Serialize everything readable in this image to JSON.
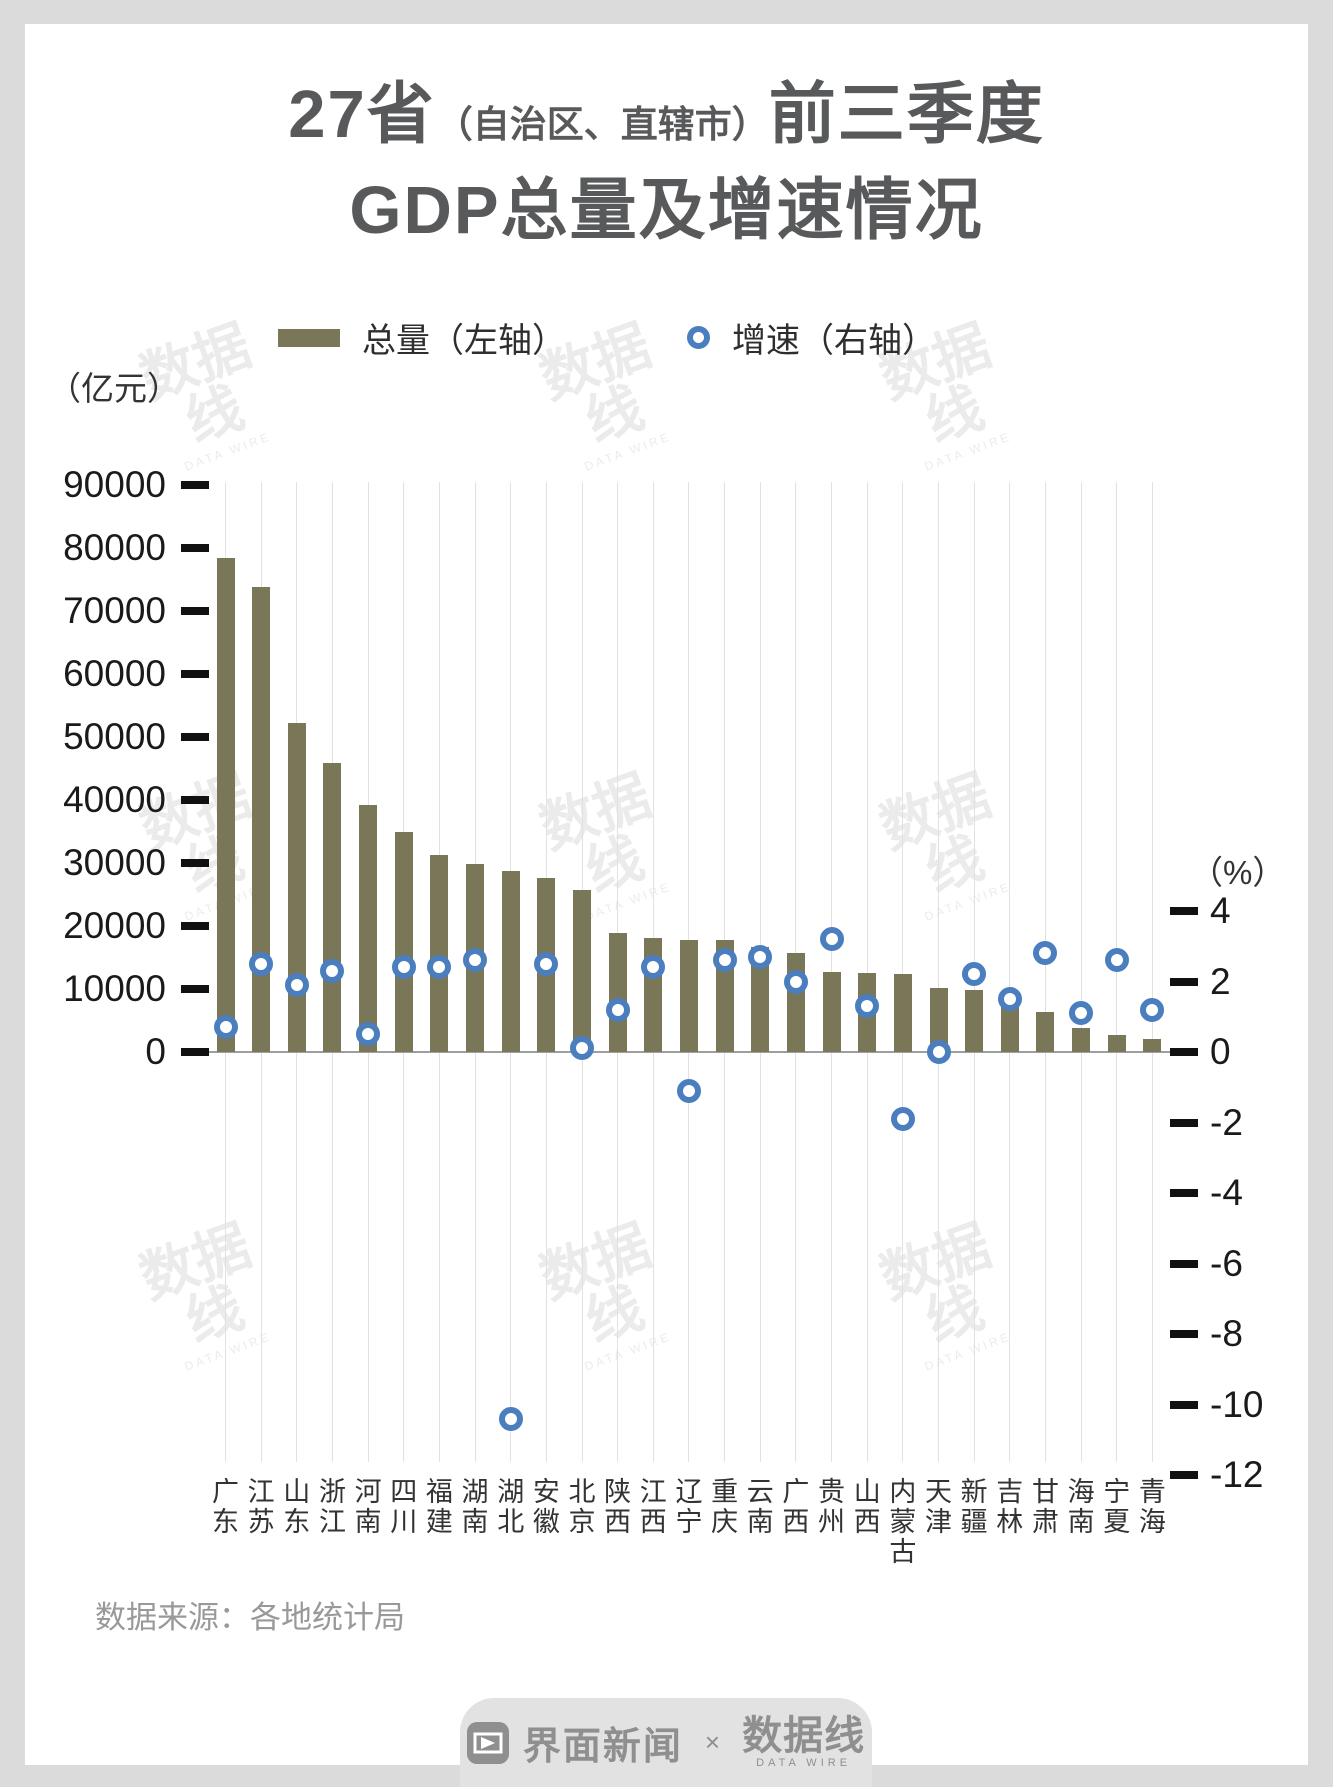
{
  "title": {
    "part1": "27省",
    "part2": "（自治区、直辖市）",
    "part3": "前三季度",
    "line2": "GDP总量及增速情况"
  },
  "legend": {
    "bar_label": "总量（左轴）",
    "circle_label": "增速（右轴）"
  },
  "chart_data": {
    "type": "bar+scatter",
    "title": "27省（自治区、直辖市）前三季度GDP总量及增速情况",
    "categories": [
      "广东",
      "江苏",
      "山东",
      "浙江",
      "河南",
      "四川",
      "福建",
      "湖南",
      "湖北",
      "安徽",
      "北京",
      "陕西",
      "江西",
      "辽宁",
      "重庆",
      "云南",
      "广西",
      "贵州",
      "山西",
      "内蒙古",
      "天津",
      "新疆",
      "吉林",
      "甘肃",
      "海南",
      "宁夏",
      "青海"
    ],
    "series": [
      {
        "name": "总量（左轴）",
        "type": "bar",
        "axis": "left",
        "unit": "亿元",
        "color": "#7A7658",
        "values": [
          78400,
          73808,
          52186,
          45826,
          39231,
          34906,
          31331,
          29781,
          28780,
          27668,
          25759,
          18880,
          18087,
          17708,
          17707,
          16630,
          15767,
          12650,
          12500,
          12319,
          10095,
          9778,
          8797,
          6331,
          3813,
          2744,
          2133
        ]
      },
      {
        "name": "增速（右轴）",
        "type": "scatter",
        "axis": "right",
        "unit": "%",
        "color": "#4A7EBF",
        "values": [
          0.7,
          2.5,
          1.9,
          2.3,
          0.5,
          2.4,
          2.4,
          2.6,
          -10.4,
          2.5,
          0.1,
          1.2,
          2.4,
          -1.1,
          2.6,
          2.7,
          2.0,
          3.2,
          1.3,
          -1.9,
          0.0,
          2.2,
          1.5,
          2.8,
          1.1,
          2.6,
          1.2
        ]
      }
    ],
    "left_axis": {
      "unit_label": "（亿元）",
      "min": 0,
      "max": 90000,
      "tick_step": 10000,
      "tick_labels": [
        "90000",
        "80000",
        "70000",
        "60000",
        "50000",
        "40000",
        "30000",
        "20000",
        "10000",
        "0"
      ]
    },
    "right_axis": {
      "unit_label": "（%）",
      "min": -12,
      "max": 4,
      "tick_step": 2,
      "tick_labels": [
        "4",
        "2",
        "0",
        "-2",
        "-4",
        "-6",
        "-8",
        "-10",
        "-12"
      ]
    },
    "grid": "vertical-category-lines"
  },
  "source": "数据来源：各地统计局",
  "watermark": {
    "logo": "数据线",
    "subtext": "DATA WIRE"
  },
  "footer": {
    "brand1": "界面新闻",
    "separator": "×",
    "brand2": "数据线",
    "brand2_sub": "DATA WIRE"
  },
  "colors": {
    "bar": "#7A7658",
    "dot": "#4A7EBF",
    "title": "#58595B",
    "page_background": "#DBDBDB",
    "card_background": "#FFFFFF",
    "source_text": "#999999",
    "footer_gray": "#8F8F8F"
  }
}
